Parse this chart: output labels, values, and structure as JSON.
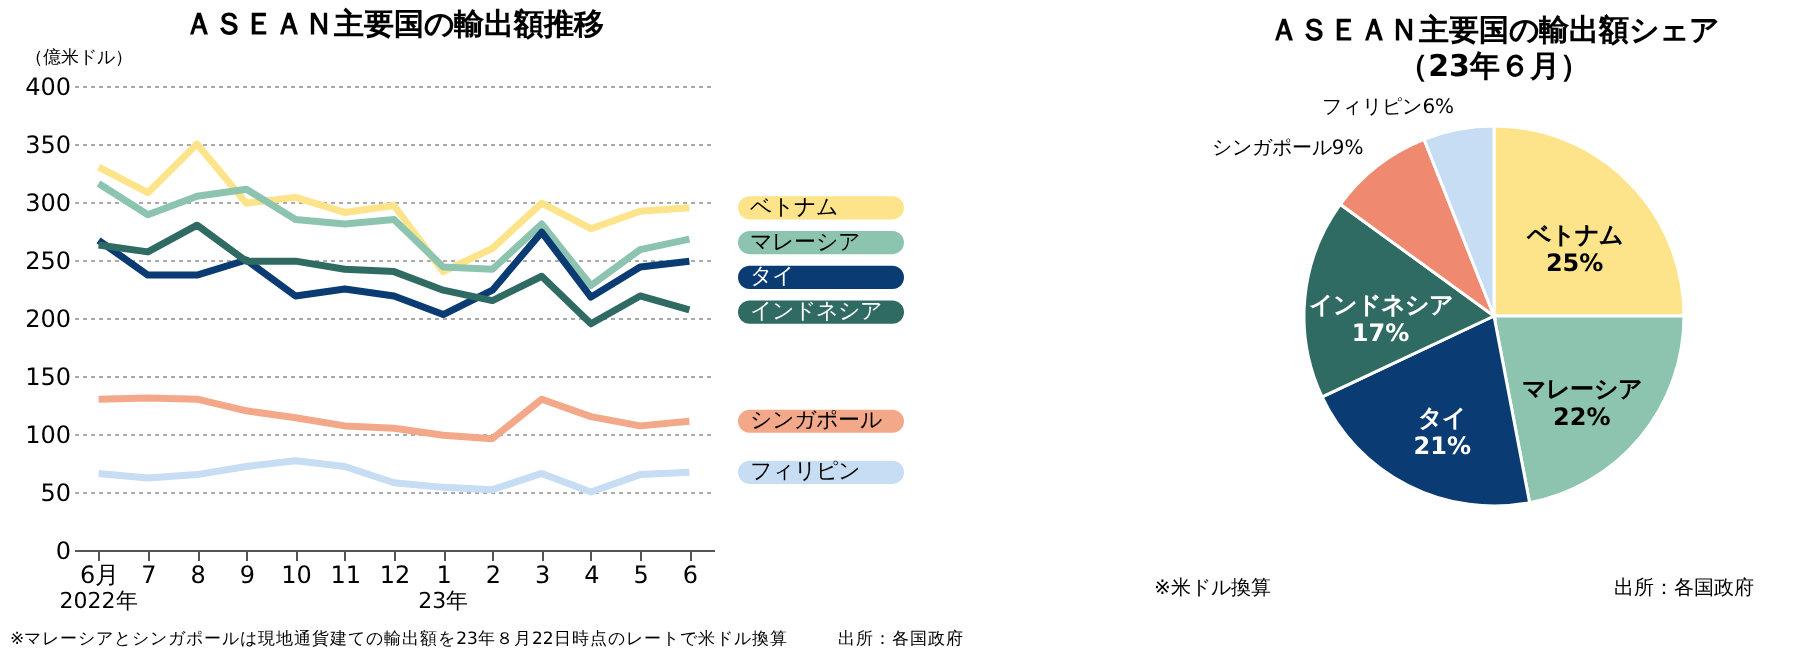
{
  "chart_data": [
    {
      "type": "line",
      "title": "ＡＳＥＡＮ主要国の輸出額推移",
      "ylabel": "（億米ドル）",
      "categories": [
        "6月",
        "7",
        "8",
        "9",
        "10",
        "11",
        "12",
        "1",
        "2",
        "3",
        "4",
        "5",
        "6"
      ],
      "series": [
        {
          "name": "ベトナム",
          "color": "#fde48a",
          "values": [
            330,
            308,
            350,
            299,
            304,
            291,
            297,
            240,
            260,
            299,
            277,
            292,
            295
          ]
        },
        {
          "name": "マレーシア",
          "color": "#8cc4b0",
          "values": [
            316,
            289,
            305,
            311,
            285,
            281,
            285,
            244,
            242,
            281,
            228,
            259,
            268
          ]
        },
        {
          "name": "タイ",
          "color": "#0b3b73",
          "values": [
            267,
            237,
            237,
            250,
            219,
            225,
            219,
            203,
            224,
            274,
            218,
            244,
            249
          ]
        },
        {
          "name": "インドネシア",
          "color": "#2f6b62",
          "values": [
            263,
            257,
            280,
            249,
            249,
            242,
            240,
            224,
            215,
            236,
            195,
            219,
            207
          ]
        },
        {
          "name": "シンガポール",
          "color": "#f4a88a",
          "values": [
            130,
            131,
            130,
            120,
            114,
            107,
            105,
            99,
            96,
            130,
            115,
            107,
            111
          ]
        },
        {
          "name": "フィリピン",
          "color": "#c6ddf3",
          "values": [
            66,
            62,
            65,
            72,
            77,
            72,
            58,
            54,
            52,
            66,
            50,
            65,
            67
          ]
        }
      ],
      "ylim": [
        0,
        400
      ],
      "yticks": [
        0,
        50,
        100,
        150,
        200,
        250,
        300,
        350,
        400
      ],
      "grid": "y",
      "marker": "none",
      "line_style": "solid",
      "annotations": [
        "2022年",
        "23年",
        "※マレーシアとシンガポールは現地通貨建ての輸出額を23年８月22日時点のレートで米ドル換算",
        "出所：各国政府"
      ]
    },
    {
      "type": "pie",
      "title": "ＡＳＥＡＮ主要国の輸出額シェア",
      "subtitle": "（23年６月）",
      "categories": [
        "ベトナム",
        "マレーシア",
        "タイ",
        "インドネシア",
        "シンガポール",
        "フィリピン"
      ],
      "values": [
        25,
        22,
        21,
        17,
        9,
        6
      ],
      "colors": [
        "#fde48a",
        "#8cc4b0",
        "#0b3b73",
        "#2f6b62",
        "#ef8a70",
        "#c6ddf3"
      ],
      "value_labels": [
        "25%",
        "22%",
        "21%",
        "17%",
        "9%",
        "6%"
      ],
      "annotations": [
        "※米ドル換算",
        "出所：各国政府"
      ]
    }
  ]
}
